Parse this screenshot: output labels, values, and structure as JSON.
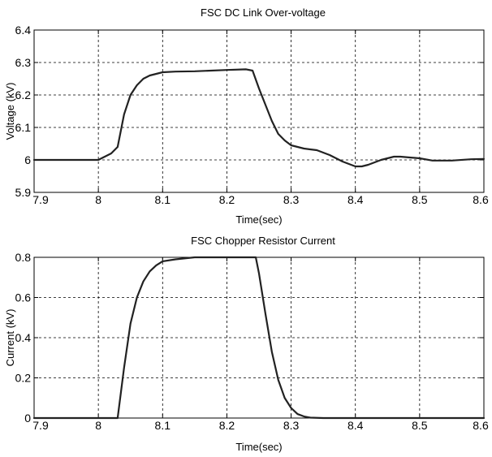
{
  "chart_data": [
    {
      "type": "line",
      "title": "FSC DC Link Over-voltage",
      "xlabel": "Time(sec)",
      "ylabel": "Voltage (kV)",
      "xlim": [
        7.9,
        8.6
      ],
      "ylim": [
        5.9,
        6.4
      ],
      "xticks": [
        "7.9",
        "8",
        "8.1",
        "8.2",
        "8.3",
        "8.4",
        "8.5",
        "8.6"
      ],
      "yticks": [
        "5.9",
        "6",
        "6.1",
        "6.2",
        "6.3",
        "6.4"
      ],
      "grid": true,
      "series": [
        {
          "x": [
            7.9,
            8.0,
            8.01,
            8.02,
            8.03,
            8.04,
            8.05,
            8.06,
            8.07,
            8.08,
            8.09,
            8.1,
            8.12,
            8.15,
            8.2,
            8.23,
            8.24,
            8.25,
            8.26,
            8.27,
            8.28,
            8.29,
            8.3,
            8.32,
            8.34,
            8.36,
            8.38,
            8.4,
            8.41,
            8.42,
            8.44,
            8.46,
            8.47,
            8.5,
            8.52,
            8.55,
            8.58,
            8.6
          ],
          "y": [
            6.0,
            6.0,
            6.01,
            6.02,
            6.04,
            6.14,
            6.2,
            6.23,
            6.25,
            6.26,
            6.265,
            6.27,
            6.272,
            6.273,
            6.277,
            6.279,
            6.275,
            6.22,
            6.17,
            6.12,
            6.08,
            6.06,
            6.045,
            6.035,
            6.03,
            6.015,
            5.995,
            5.98,
            5.98,
            5.985,
            6.0,
            6.01,
            6.01,
            6.005,
            5.998,
            5.998,
            6.002,
            6.003
          ]
        }
      ]
    },
    {
      "type": "line",
      "title": "FSC Chopper Resistor Current",
      "xlabel": "Time(sec)",
      "ylabel": "Current (kV)",
      "xlim": [
        7.9,
        8.6
      ],
      "ylim": [
        0,
        0.8
      ],
      "xticks": [
        "7.9",
        "8",
        "8.1",
        "8.2",
        "8.3",
        "8.4",
        "8.5",
        "8.6"
      ],
      "yticks": [
        "0",
        "0.2",
        "0.4",
        "0.6",
        "0.8"
      ],
      "grid": true,
      "series": [
        {
          "x": [
            7.9,
            8.0,
            8.03,
            8.04,
            8.05,
            8.06,
            8.07,
            8.08,
            8.09,
            8.1,
            8.12,
            8.15,
            8.2,
            8.24,
            8.245,
            8.25,
            8.26,
            8.27,
            8.28,
            8.29,
            8.3,
            8.31,
            8.32,
            8.33,
            8.35,
            8.6
          ],
          "y": [
            0,
            0,
            0,
            0.25,
            0.47,
            0.6,
            0.68,
            0.73,
            0.76,
            0.78,
            0.79,
            0.8,
            0.8,
            0.8,
            0.8,
            0.72,
            0.52,
            0.33,
            0.19,
            0.1,
            0.05,
            0.02,
            0.008,
            0.002,
            0,
            0
          ]
        }
      ]
    }
  ]
}
